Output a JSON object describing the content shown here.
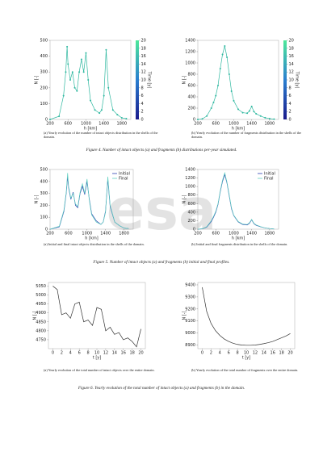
{
  "watermark": "esa",
  "figure_captions": [
    "Figure 4. Number of intact objects (a) and fragments (b) distributions per-year simulated.",
    "Figure 5. Number of intact objects (a) and fragments (b) initial and final profiles.",
    "Figure 6. Yearly evolution of the total number of intact objects (a) and fragments (b) in the domain."
  ],
  "chart_data": [
    {
      "type": "line",
      "markers": true,
      "caption": "(a) Yearly evolution of the number of intact objects distribution in the shells of the domain.",
      "xlabel": "h [km]",
      "ylabel": "N [-]",
      "x": [
        200,
        400,
        500,
        550,
        580,
        600,
        650,
        700,
        750,
        800,
        850,
        900,
        950,
        1000,
        1050,
        1100,
        1200,
        1300,
        1350,
        1400,
        1450,
        1500,
        1600,
        1700,
        1800,
        1900
      ],
      "series": [
        {
          "color": "#2fb8a0",
          "values": [
            0,
            20,
            150,
            300,
            460,
            350,
            250,
            300,
            200,
            180,
            300,
            380,
            300,
            420,
            250,
            120,
            60,
            40,
            60,
            150,
            440,
            200,
            60,
            30,
            10,
            5
          ]
        }
      ],
      "xlim": [
        200,
        2000
      ],
      "xticks": [
        200,
        600,
        1000,
        1400,
        1800
      ],
      "ylim": [
        0,
        500
      ],
      "yticks": [
        0,
        100,
        200,
        300,
        400,
        500
      ],
      "colorbar": {
        "label": "Time [y]",
        "lim": [
          0,
          20
        ],
        "ticks": [
          0,
          2,
          4,
          6,
          8,
          10,
          12,
          14,
          16,
          18,
          20
        ]
      }
    },
    {
      "type": "line",
      "markers": true,
      "caption": "(b) Yearly evolution of the number of fragments distribution in the shells of the domain.",
      "xlabel": "h [km]",
      "ylabel": "N [-]",
      "x": [
        200,
        300,
        400,
        500,
        550,
        600,
        650,
        700,
        750,
        800,
        850,
        900,
        950,
        1000,
        1100,
        1200,
        1300,
        1350,
        1400,
        1450,
        1500,
        1600,
        1700,
        1800,
        1900
      ],
      "series": [
        {
          "color": "#2fb8a0",
          "values": [
            0,
            10,
            60,
            200,
            300,
            420,
            600,
            900,
            1150,
            1300,
            1100,
            800,
            500,
            330,
            180,
            120,
            110,
            150,
            230,
            140,
            100,
            60,
            30,
            15,
            5
          ]
        }
      ],
      "xlim": [
        200,
        2000
      ],
      "xticks": [
        200,
        600,
        1000,
        1400,
        1800
      ],
      "ylim": [
        0,
        1400
      ],
      "yticks": [
        0,
        200,
        400,
        600,
        800,
        1000,
        1200,
        1400
      ],
      "colorbar": {
        "label": "Time [y]",
        "lim": [
          0,
          20
        ],
        "ticks": [
          0,
          2,
          4,
          6,
          8,
          10,
          12,
          14,
          16,
          18,
          20
        ]
      }
    },
    {
      "type": "line",
      "legend": "upper right",
      "caption": "(a) Initial and final intact objects distribution in the shells of the domain.",
      "xlabel": "h [km]",
      "ylabel": "N [-]",
      "x": [
        200,
        400,
        500,
        550,
        580,
        600,
        650,
        700,
        750,
        800,
        850,
        900,
        950,
        1000,
        1050,
        1100,
        1200,
        1300,
        1350,
        1400,
        1450,
        1500,
        1600,
        1700,
        1800,
        1900
      ],
      "series": [
        {
          "name": "Initial",
          "color": "#2b3fb0",
          "values": [
            0,
            20,
            150,
            300,
            440,
            350,
            250,
            310,
            200,
            180,
            300,
            360,
            290,
            400,
            250,
            130,
            70,
            40,
            60,
            150,
            420,
            190,
            60,
            30,
            10,
            5
          ]
        },
        {
          "name": "Final",
          "color": "#5fd0c0",
          "values": [
            0,
            25,
            160,
            310,
            470,
            360,
            260,
            300,
            210,
            190,
            310,
            380,
            300,
            420,
            240,
            120,
            60,
            40,
            60,
            140,
            440,
            200,
            60,
            30,
            10,
            5
          ]
        }
      ],
      "xlim": [
        200,
        2000
      ],
      "xticks": [
        200,
        600,
        1000,
        1400,
        1800
      ],
      "ylim": [
        0,
        500
      ],
      "yticks": [
        0,
        100,
        200,
        300,
        400,
        500
      ]
    },
    {
      "type": "line",
      "legend": "upper right",
      "caption": "(b) Initial and final fragments distribution in the shells of the domain.",
      "xlabel": "h [km]",
      "ylabel": "N [-]",
      "x": [
        200,
        300,
        400,
        500,
        550,
        600,
        650,
        700,
        750,
        800,
        850,
        900,
        950,
        1000,
        1100,
        1200,
        1300,
        1350,
        1400,
        1450,
        1500,
        1600,
        1700,
        1800,
        1900
      ],
      "series": [
        {
          "name": "Initial",
          "color": "#2b3fb0",
          "values": [
            0,
            10,
            50,
            180,
            280,
            400,
            580,
            880,
            1120,
            1280,
            1080,
            780,
            480,
            320,
            170,
            110,
            100,
            140,
            220,
            130,
            90,
            55,
            30,
            15,
            5
          ]
        },
        {
          "name": "Final",
          "color": "#5fd0c0",
          "values": [
            0,
            12,
            60,
            200,
            300,
            420,
            600,
            900,
            1150,
            1320,
            1100,
            800,
            500,
            330,
            180,
            120,
            110,
            150,
            230,
            140,
            100,
            60,
            30,
            15,
            5
          ]
        }
      ],
      "xlim": [
        200,
        2000
      ],
      "xticks": [
        200,
        600,
        1000,
        1400,
        1800
      ],
      "ylim": [
        0,
        1400
      ],
      "yticks": [
        0,
        200,
        400,
        600,
        800,
        1000,
        1200,
        1400
      ]
    },
    {
      "type": "line",
      "caption": "(a) Yearly evolution of the total number of intact objects over the entire domain.",
      "xlabel": "t [y]",
      "ylabel": "N [-]",
      "x": [
        0,
        1,
        2,
        3,
        4,
        5,
        6,
        7,
        8,
        9,
        10,
        11,
        12,
        13,
        14,
        15,
        16,
        17,
        18,
        19,
        20
      ],
      "series": [
        {
          "color": "#333333",
          "values": [
            5050,
            5030,
            4890,
            4900,
            4870,
            4950,
            4960,
            4850,
            4860,
            4830,
            4930,
            4920,
            4800,
            4820,
            4780,
            4790,
            4750,
            4760,
            4740,
            4710,
            4810
          ]
        }
      ],
      "xlim": [
        -1,
        21
      ],
      "xticks": [
        0,
        2,
        4,
        6,
        8,
        10,
        12,
        14,
        16,
        18,
        20
      ],
      "ylim": [
        4700,
        5070
      ],
      "yticks": [
        4750,
        4800,
        4850,
        4900,
        4950,
        5000,
        5050
      ]
    },
    {
      "type": "line",
      "caption": "(b) Yearly evolution of the total number of fragments over the entire domain.",
      "xlabel": "t [y]",
      "ylabel": "N [-]",
      "x": [
        0,
        1,
        2,
        3,
        4,
        5,
        6,
        7,
        8,
        9,
        10,
        11,
        12,
        13,
        14,
        15,
        16,
        17,
        18,
        19,
        20
      ],
      "series": [
        {
          "color": "#333333",
          "values": [
            9380,
            9180,
            9080,
            9020,
            8980,
            8950,
            8930,
            8915,
            8905,
            8900,
            8898,
            8898,
            8900,
            8905,
            8912,
            8920,
            8930,
            8945,
            8960,
            8975,
            8995
          ]
        }
      ],
      "xlim": [
        -1,
        21
      ],
      "xticks": [
        0,
        2,
        4,
        6,
        8,
        10,
        12,
        14,
        16,
        18,
        20
      ],
      "ylim": [
        8870,
        9420
      ],
      "yticks": [
        8900,
        9000,
        9100,
        9200,
        9300,
        9400
      ]
    }
  ]
}
